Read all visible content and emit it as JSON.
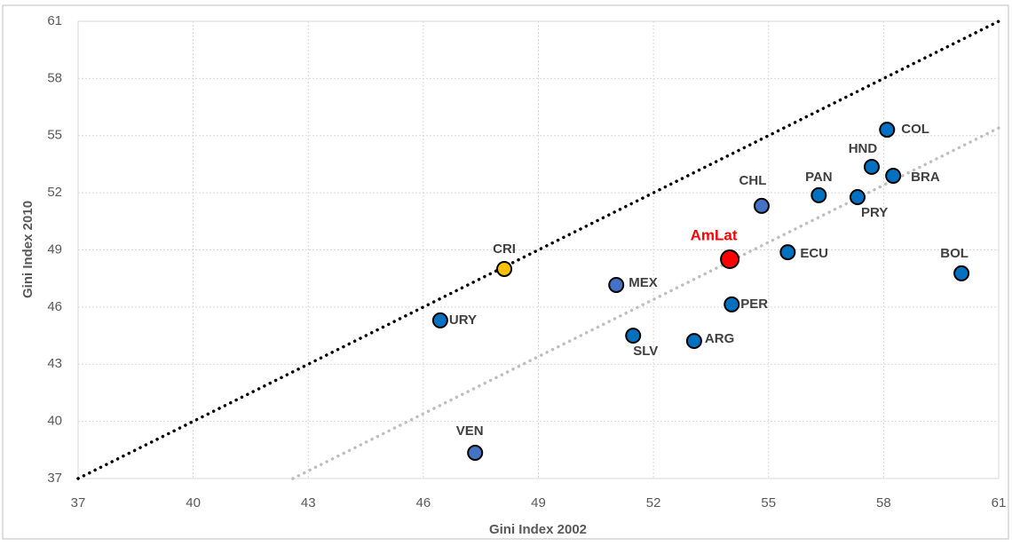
{
  "chart_data": {
    "type": "scatter",
    "x_label": "Gini Index 2002",
    "y_label": "Gini Index 2010",
    "labels": [
      "COL",
      "HND",
      "BRA",
      "PAN",
      "PRY",
      "CHL",
      "ECU",
      "AmLat",
      "BOL",
      "CRI",
      "MEX",
      "PER",
      "URY",
      "SLV",
      "ARG",
      "VEN"
    ],
    "x": [
      58.09,
      57.69,
      58.25,
      56.31,
      57.32,
      54.82,
      55.5,
      53.99,
      60.03,
      48.11,
      51.03,
      54.04,
      46.44,
      51.47,
      53.06,
      47.35
    ],
    "y": [
      55.31,
      53.36,
      52.89,
      51.87,
      51.77,
      51.31,
      48.88,
      48.51,
      47.77,
      48.0,
      47.16,
      46.14,
      45.3,
      44.5,
      44.22,
      38.35
    ],
    "colors": [
      "#0070c0",
      "#0070c0",
      "#0070c0",
      "#0070c0",
      "#0070c0",
      "#4472c4",
      "#0070c0",
      "#ff0000",
      "#0070c0",
      "#ffc000",
      "#4472c4",
      "#0070c0",
      "#0070c0",
      "#0070c0",
      "#0070c0",
      "#4472c4"
    ],
    "reference_lines": [
      {
        "x": [
          37,
          61
        ],
        "y": [
          37,
          61
        ],
        "color": "#000000"
      },
      {
        "x": [
          42.6,
          61
        ],
        "y": [
          37,
          55.4
        ],
        "color": "#bfbfbf"
      }
    ],
    "xlim": [
      37,
      61
    ],
    "ylim": [
      37,
      61
    ],
    "xticks": [
      37,
      40,
      43,
      46,
      49,
      52,
      55,
      58,
      61
    ],
    "yticks": [
      37,
      40,
      43,
      46,
      49,
      52,
      55,
      58,
      61
    ],
    "grid": true
  }
}
